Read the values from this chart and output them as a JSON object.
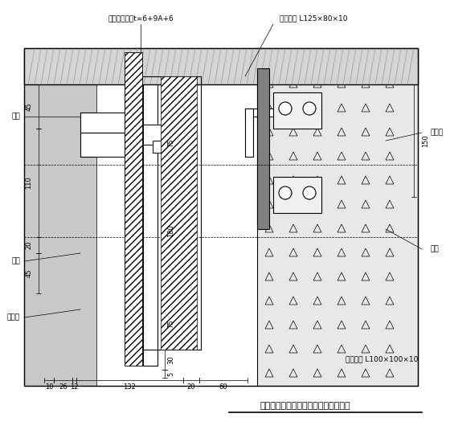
{
  "title": "某玻璃玻璃幕墙垂直节点（固定部分）",
  "top_label1": "中空钢化玻璃t=6+9A+6",
  "top_label2": "镀锌角钢 L125×80×10",
  "right_label1": "预埋件",
  "right_label2": "螺栓",
  "right_label3": "镀锌角钢 L100×100×10",
  "left_label1": "上框",
  "left_label2": "下框",
  "left_label3": "防火槽",
  "dim_45": "45",
  "dim_110": "110",
  "dim_20": "20",
  "dim_45b": "45",
  "dim_75a": "75",
  "dim_180": "180",
  "dim_75b": "75",
  "dim_30": "30",
  "dim_5": "5",
  "dim_10": "10",
  "dim_26": "26",
  "dim_12": "12",
  "dim_132": "132",
  "dim_20b": "20",
  "dim_60": "60",
  "dim_150": "150",
  "bg_color": "#ffffff",
  "line_color": "#000000",
  "hatch_color": "#000000",
  "concrete_color": "#d0d0d0"
}
